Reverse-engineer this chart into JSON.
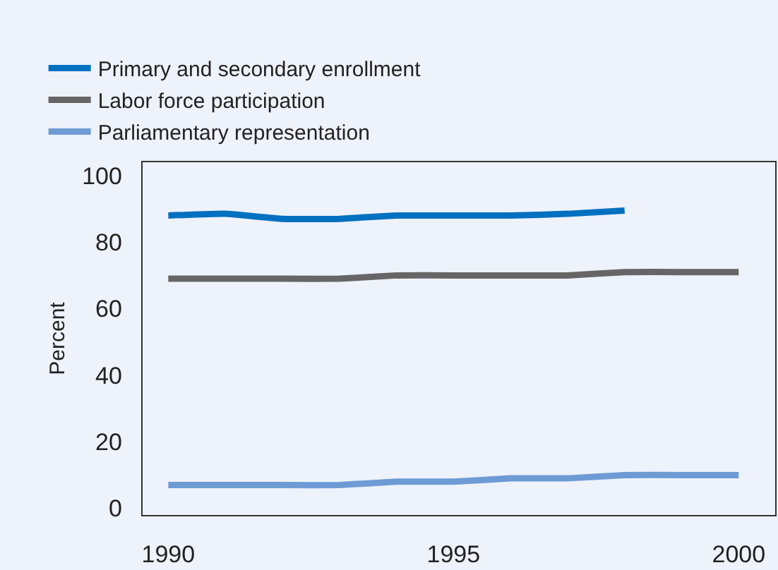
{
  "chart_data": {
    "type": "line",
    "ylabel": "Percent",
    "x": [
      1990,
      1991,
      1992,
      1993,
      1994,
      1995,
      1996,
      1997,
      1998,
      1999,
      2000
    ],
    "series": [
      {
        "name": "Primary and secondary enrollment",
        "color": "#0070c0",
        "values": [
          88,
          88.5,
          87,
          87,
          88,
          88,
          88,
          88.5,
          89.5,
          null,
          null
        ]
      },
      {
        "name": "Labor force participation",
        "color": "#666666",
        "values": [
          69,
          69,
          69,
          69,
          70,
          70,
          70,
          70,
          71,
          71,
          71
        ]
      },
      {
        "name": "Parliamentary representation",
        "color": "#6e9bd4",
        "values": [
          7,
          7,
          7,
          7,
          8,
          8,
          9,
          9,
          10,
          10,
          10
        ]
      }
    ],
    "xlim": [
      1989.55,
      2000.64
    ],
    "xticks": [
      1990,
      1995,
      2000
    ],
    "ylim": [
      -2,
      104
    ],
    "yticks": [
      0,
      20,
      40,
      60,
      80,
      100
    ],
    "grid": false,
    "legend": "top left",
    "marker": "none",
    "line_style": "solid"
  }
}
